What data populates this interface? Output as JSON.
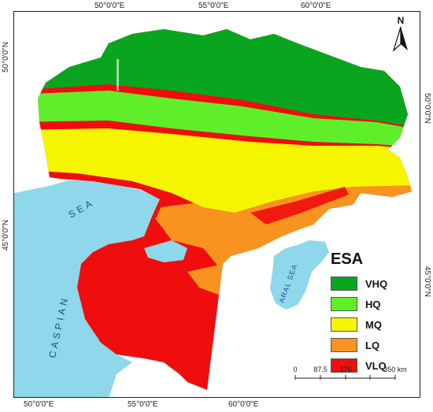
{
  "coords": {
    "top": [
      "50°0'0\"E",
      "55°0'0\"E",
      "60°0'0\"E"
    ],
    "bottom": [
      "50°0'0\"E",
      "55°0'0\"E",
      "60°0'0\"E"
    ],
    "left": [
      "50°0'0\"N",
      "45°0'0\"N"
    ],
    "right": [
      "50°0'0\"N",
      "45°0'0\"N"
    ]
  },
  "north_label": "N",
  "sea_labels": {
    "caspian_a": "CASPIAN",
    "caspian_b": "SEA",
    "aral": "ARAL SEA"
  },
  "legend": {
    "title": "ESA",
    "items": [
      {
        "label": "VHQ",
        "color": "#0aa51f"
      },
      {
        "label": "HQ",
        "color": "#5fef2a"
      },
      {
        "label": "MQ",
        "color": "#f6f500"
      },
      {
        "label": "LQ",
        "color": "#f7931e"
      },
      {
        "label": "VLQ",
        "color": "#f00d0d"
      }
    ]
  },
  "scalebar": {
    "ticks": [
      "0",
      "87.5",
      "175",
      "350 km"
    ]
  },
  "colors": {
    "water": "#8fd7ea",
    "vhq": "#0aa51f",
    "hq": "#5fef2a",
    "mq": "#f6f500",
    "lq": "#f7931e",
    "vlq": "#f00d0d"
  }
}
